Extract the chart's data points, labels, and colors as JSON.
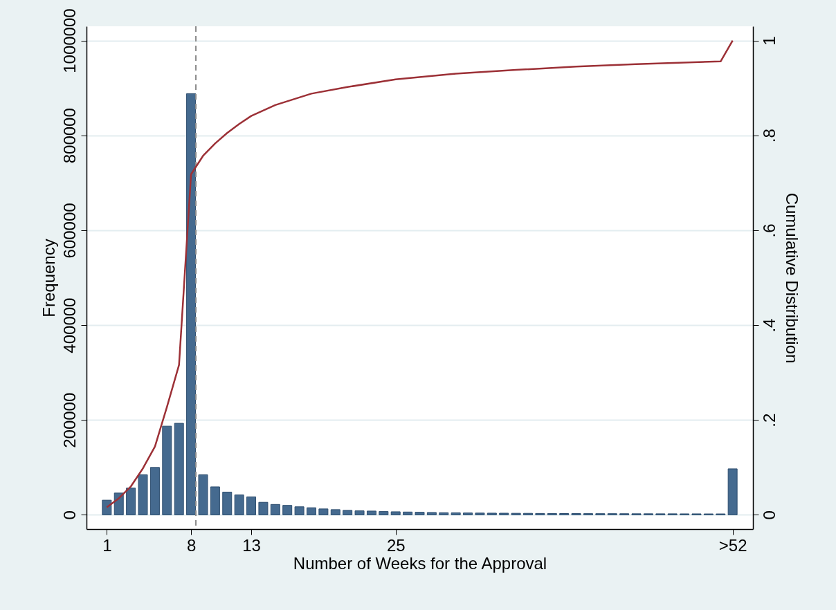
{
  "chart_data": {
    "type": "bar",
    "xlabel": "Number of Weeks for the Approval",
    "ylabel": "Frequency",
    "y2label": "Cumulative Distribution",
    "x": [
      1,
      2,
      3,
      4,
      5,
      6,
      7,
      8,
      9,
      10,
      11,
      12,
      13,
      14,
      15,
      16,
      17,
      18,
      19,
      20,
      21,
      22,
      23,
      24,
      25,
      26,
      27,
      28,
      29,
      30,
      31,
      32,
      33,
      34,
      35,
      36,
      37,
      38,
      39,
      40,
      41,
      42,
      43,
      44,
      45,
      46,
      47,
      48,
      49,
      50,
      51,
      52,
      53
    ],
    "series": [
      {
        "color": "#456a8f",
        "values": [
          31000,
          46000,
          56500,
          84500,
          100000,
          187000,
          193000,
          888000,
          84500,
          59000,
          48000,
          42000,
          38000,
          26500,
          22000,
          20000,
          17000,
          15000,
          12500,
          11000,
          9500,
          8500,
          8000,
          7000,
          6500,
          6000,
          5500,
          5000,
          4500,
          4300,
          4000,
          3800,
          3600,
          3500,
          3300,
          3200,
          3000,
          2900,
          2800,
          2700,
          2600,
          2500,
          2500,
          2400,
          2300,
          2300,
          2200,
          2200,
          2100,
          2100,
          2000,
          2000,
          97000
        ]
      },
      {
        "type": "line",
        "axis": "y2",
        "color": "#9c3036",
        "x": [
          1,
          2,
          3,
          4,
          5,
          6,
          7,
          8,
          9,
          10,
          11,
          12,
          13,
          15,
          18,
          21,
          25,
          30,
          35,
          40,
          45,
          52,
          53
        ],
        "values": [
          0.016,
          0.035,
          0.06,
          0.098,
          0.144,
          0.228,
          0.316,
          0.718,
          0.757,
          0.783,
          0.805,
          0.824,
          0.841,
          0.864,
          0.888,
          0.902,
          0.918,
          0.93,
          0.938,
          0.945,
          0.95,
          0.956,
          1.0
        ]
      }
    ],
    "xlim": [
      -0.4,
      54.4
    ],
    "xticks": [
      1,
      8,
      13,
      25,
      {
        "value": 53,
        "label": ">52"
      }
    ],
    "ylim": [
      -30000,
      1030000
    ],
    "yticks": [
      0,
      200000,
      400000,
      600000,
      800000,
      1000000
    ],
    "y2lim": [
      -0.03,
      1.03
    ],
    "y2ticks": [
      0,
      {
        "value": 0.2,
        "label": ".2"
      },
      {
        "value": 0.4,
        "label": ".4"
      },
      {
        "value": 0.6,
        "label": ".6"
      },
      {
        "value": 0.8,
        "label": ".8"
      },
      1
    ],
    "ref_lines": [
      {
        "axis": "x",
        "value": 8.4,
        "color": "#8c8c8c",
        "line_style": "dashed"
      }
    ],
    "grid": "y"
  }
}
